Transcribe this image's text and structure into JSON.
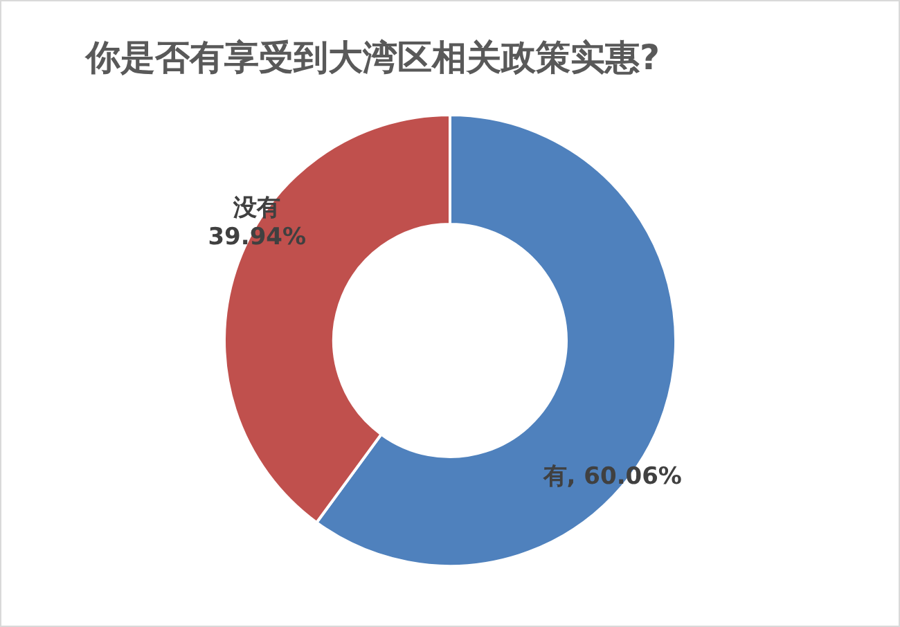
{
  "chart_data": {
    "type": "donut",
    "title": "你是否有享受到大湾区相关政策实惠?",
    "categories": [
      "有",
      "没有"
    ],
    "values": [
      60.06,
      39.94
    ],
    "colors": [
      "#4f81bd",
      "#c0504d"
    ],
    "value_labels": [
      "60.06%",
      "39.94%"
    ]
  }
}
